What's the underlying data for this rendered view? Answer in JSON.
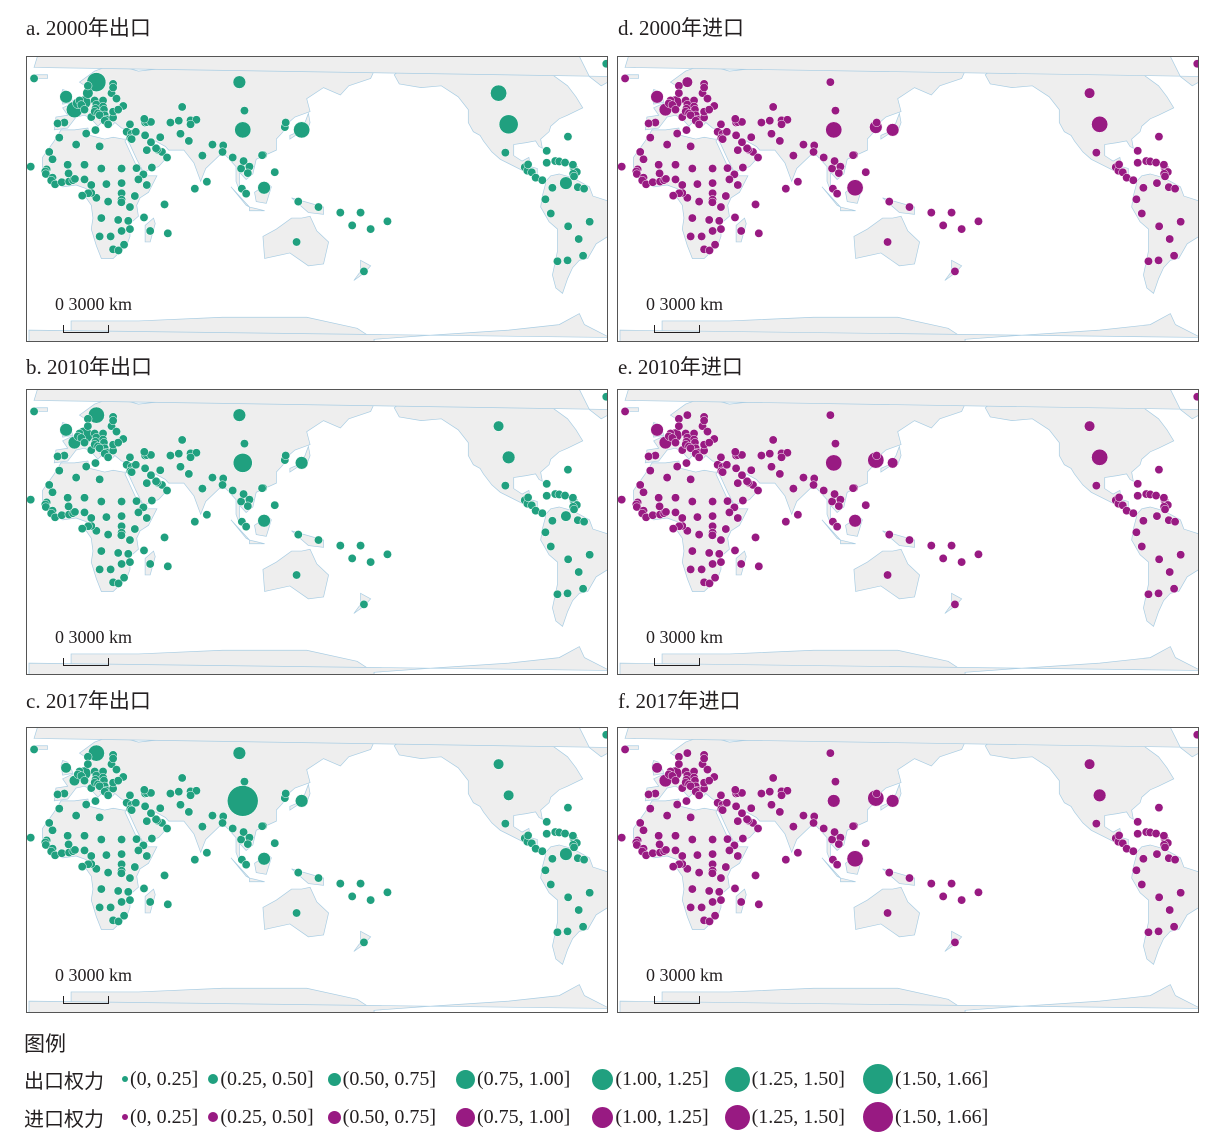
{
  "colors": {
    "export": "#20a07f",
    "import": "#981a82",
    "land": "#eeeeee",
    "border": "#c8c8c8",
    "coast": "#a9cde3"
  },
  "panels": [
    {
      "id": "a",
      "title": "a. 2000年出口",
      "type": "export",
      "scale_label": "0   3000 km"
    },
    {
      "id": "b",
      "title": "b. 2010年出口",
      "type": "export",
      "scale_label": "0   3000 km"
    },
    {
      "id": "c",
      "title": "c. 2017年出口",
      "type": "export",
      "scale_label": "0   3000 km"
    },
    {
      "id": "d",
      "title": "d. 2000年进口",
      "type": "import",
      "scale_label": "0   3000 km"
    },
    {
      "id": "e",
      "title": "e. 2010年进口",
      "type": "import",
      "scale_label": "0   3000 km"
    },
    {
      "id": "f",
      "title": "f. 2017年进口",
      "type": "import",
      "scale_label": "0   3000 km"
    }
  ],
  "legend": {
    "title": "图例",
    "export_label": "出口权力",
    "import_label": "进口权力",
    "classes": [
      "(0, 0.25]",
      "(0.25, 0.50]",
      "(0.50, 0.75]",
      "(0.75, 1.00]",
      "(1.00, 1.25]",
      "(1.25, 1.50]",
      "(1.50, 1.66]"
    ]
  },
  "map_data": {
    "projection": "Pacific-centred world map (lon 0 at left edge)",
    "default_class": 1,
    "points_lonlat": [
      [
        -22,
        64
      ],
      [
        10,
        60
      ],
      [
        15,
        62
      ],
      [
        25,
        61
      ],
      [
        -3,
        54
      ],
      [
        2,
        47
      ],
      [
        8,
        51
      ],
      [
        5,
        52
      ],
      [
        4,
        50.5
      ],
      [
        6,
        49.6
      ],
      [
        10,
        56
      ],
      [
        14,
        52
      ],
      [
        19,
        52
      ],
      [
        24,
        56
      ],
      [
        25,
        59
      ],
      [
        27,
        53
      ],
      [
        31,
        49
      ],
      [
        15,
        49.8
      ],
      [
        19,
        48.7
      ],
      [
        19.5,
        47
      ],
      [
        14.5,
        47.5
      ],
      [
        8,
        47
      ],
      [
        12,
        43
      ],
      [
        14,
        46
      ],
      [
        16,
        45
      ],
      [
        20,
        44
      ],
      [
        17,
        44
      ],
      [
        21,
        41.6
      ],
      [
        20,
        41
      ],
      [
        22,
        39
      ],
      [
        25,
        42.7
      ],
      [
        25,
        45.9
      ],
      [
        28,
        47
      ],
      [
        -4,
        40
      ],
      [
        -8,
        39.5
      ],
      [
        14.5,
        35.9
      ],
      [
        33,
        35
      ],
      [
        35,
        39
      ],
      [
        44,
        40
      ],
      [
        45,
        40.2
      ],
      [
        47.5,
        40.3
      ],
      [
        43.5,
        42
      ],
      [
        35.8,
        33.8
      ],
      [
        35.2,
        31.5
      ],
      [
        36,
        31
      ],
      [
        38.5,
        35
      ],
      [
        44,
        33
      ],
      [
        53,
        32
      ],
      [
        66,
        48.5
      ],
      [
        59,
        40
      ],
      [
        64,
        41
      ],
      [
        71,
        41.2
      ],
      [
        74.5,
        41.5
      ],
      [
        71,
        39
      ],
      [
        65,
        33.9
      ],
      [
        70,
        30
      ],
      [
        78,
        22
      ],
      [
        84,
        28
      ],
      [
        90.4,
        27.5
      ],
      [
        90,
        24
      ],
      [
        80.7,
        7.8
      ],
      [
        73.5,
        4
      ],
      [
        96,
        21
      ],
      [
        101,
        15
      ],
      [
        102.5,
        19
      ],
      [
        106,
        16
      ],
      [
        105,
        12.5
      ],
      [
        101.5,
        4
      ],
      [
        104,
        1.3
      ],
      [
        114.7,
        4.5
      ],
      [
        121,
        13
      ],
      [
        114.1,
        22.4
      ],
      [
        113.5,
        22.2
      ],
      [
        127,
        37.5
      ],
      [
        127.5,
        40
      ],
      [
        103,
        46.5
      ],
      [
        45,
        25
      ],
      [
        54,
        24
      ],
      [
        51.2,
        25.3
      ],
      [
        50.5,
        26
      ],
      [
        47.5,
        29.3
      ],
      [
        57,
        21
      ],
      [
        48,
        15.5
      ],
      [
        38.9,
        15.2
      ],
      [
        43,
        11.8
      ],
      [
        45,
        6
      ],
      [
        40,
        9
      ],
      [
        37.9,
        0
      ],
      [
        30,
        1.5
      ],
      [
        30,
        -2
      ],
      [
        29.9,
        -3.4
      ],
      [
        35,
        -6
      ],
      [
        34,
        -13.5
      ],
      [
        28,
        -13
      ],
      [
        30,
        -19
      ],
      [
        35,
        -18
      ],
      [
        23.5,
        -22
      ],
      [
        17,
        -22
      ],
      [
        25,
        -29
      ],
      [
        28.2,
        -29.6
      ],
      [
        31.5,
        -26.5
      ],
      [
        18,
        -12
      ],
      [
        22,
        -3
      ],
      [
        15,
        -1
      ],
      [
        12,
        1.7
      ],
      [
        10.2,
        1.5
      ],
      [
        12,
        6
      ],
      [
        21,
        6.5
      ],
      [
        18,
        15
      ],
      [
        30,
        15
      ],
      [
        30,
        7
      ],
      [
        17,
        27
      ],
      [
        9,
        34
      ],
      [
        3,
        28
      ],
      [
        -7,
        31.8
      ],
      [
        -13,
        24
      ],
      [
        -11,
        20
      ],
      [
        -2,
        17
      ],
      [
        8,
        17
      ],
      [
        -14.5,
        14.5
      ],
      [
        -15.3,
        13.4
      ],
      [
        -15,
        12
      ],
      [
        -11,
        10
      ],
      [
        -11.8,
        8.5
      ],
      [
        -9.5,
        6.4
      ],
      [
        -5.5,
        7.5
      ],
      [
        -1.2,
        7.9
      ],
      [
        1.2,
        8.6
      ],
      [
        2.3,
        9.3
      ],
      [
        8,
        9
      ],
      [
        -1.5,
        12.3
      ],
      [
        -24,
        16
      ],
      [
        47,
        -19
      ],
      [
        57.5,
        -20.3
      ],
      [
        55.5,
        -4.6
      ],
      [
        43.3,
        -11.7
      ],
      [
        6.6,
        0.2
      ],
      [
        147,
        -6
      ],
      [
        160,
        -9
      ],
      [
        167,
        -16
      ],
      [
        178,
        -18
      ],
      [
        172,
        -9
      ],
      [
        -172,
        -13.8
      ],
      [
        134,
        -25
      ],
      [
        174,
        -41
      ],
      [
        135,
        -3
      ],
      [
        137,
        36
      ],
      [
        102,
        36
      ],
      [
        100,
        62
      ],
      [
        -106,
        56
      ],
      [
        -100,
        39
      ],
      [
        -102,
        23.6
      ],
      [
        -90.4,
        15.7
      ],
      [
        -88.9,
        13.8
      ],
      [
        -86.3,
        12.9
      ],
      [
        -84,
        10
      ],
      [
        -80,
        8.6
      ],
      [
        -88.5,
        17.2
      ],
      [
        -77.4,
        18.1
      ],
      [
        -72.3,
        19
      ],
      [
        -70,
        18.8
      ],
      [
        -66.5,
        18.2
      ],
      [
        -61.4,
        15.4
      ],
      [
        -61,
        13.9
      ],
      [
        -61.8,
        17
      ],
      [
        -59.5,
        13.1
      ],
      [
        -61.7,
        12.1
      ],
      [
        -61.2,
        10.7
      ],
      [
        -66,
        7
      ],
      [
        -74,
        4.5
      ],
      [
        -78.2,
        -1.8
      ],
      [
        -75,
        -9.5
      ],
      [
        -64.7,
        -16.5
      ],
      [
        -58.4,
        -23.4
      ],
      [
        -55.8,
        -32.5
      ],
      [
        -65,
        -35
      ],
      [
        -71,
        -35.5
      ],
      [
        -51.9,
        -14
      ],
      [
        -58.9,
        4.8
      ],
      [
        -55.2,
        4
      ],
      [
        -77.4,
        24.6
      ],
      [
        -64.8,
        32.3
      ],
      [
        -42,
        72
      ]
    ],
    "class_overrides": {
      "a": {
        "100,62": 3,
        "102,36": 4,
        "137,36": 4,
        "-106,56": 4,
        "-100,39": 5,
        "2,47": 4,
        "15,62": 5,
        "8,51": 3,
        "-3,54": 3,
        "114.7,4.5": 3,
        "-66,7": 3,
        "4,50.5": 2,
        "10,56": 2
      },
      "b": {
        "100,62": 3,
        "102,36": 5,
        "137,36": 3,
        "-106,56": 2,
        "-100,39": 3,
        "2,47": 3,
        "15,62": 4,
        "8,51": 4,
        "-3,54": 3,
        "114.7,4.5": 3,
        "-66,7": 2
      },
      "c": {
        "100,62": 3,
        "102,36": 7,
        "137,36": 3,
        "-106,56": 2,
        "-100,39": 2,
        "2,47": 2,
        "15,62": 4,
        "8,51": 3,
        "-3,54": 2,
        "114.7,4.5": 3,
        "-66,7": 3
      },
      "d": {
        "100,62": 1,
        "102,36": 4,
        "137,36": 3,
        "127,37.5": 3,
        "-106,56": 2,
        "-100,39": 4,
        "2,47": 3,
        "8,51": 3,
        "-3,54": 3,
        "15,62": 2,
        "114.7,4.5": 4
      },
      "e": {
        "100,62": 1,
        "102,36": 4,
        "137,36": 2,
        "127,37.5": 4,
        "-106,56": 2,
        "-100,39": 4,
        "2,47": 3,
        "8,51": 3,
        "-3,54": 3,
        "114.7,4.5": 3
      },
      "f": {
        "100,62": 1,
        "102,36": 3,
        "137,36": 3,
        "127,37.5": 4,
        "-106,56": 2,
        "-100,39": 3,
        "2,47": 3,
        "8,51": 3,
        "-3,54": 2,
        "114.7,4.5": 4
      }
    }
  }
}
